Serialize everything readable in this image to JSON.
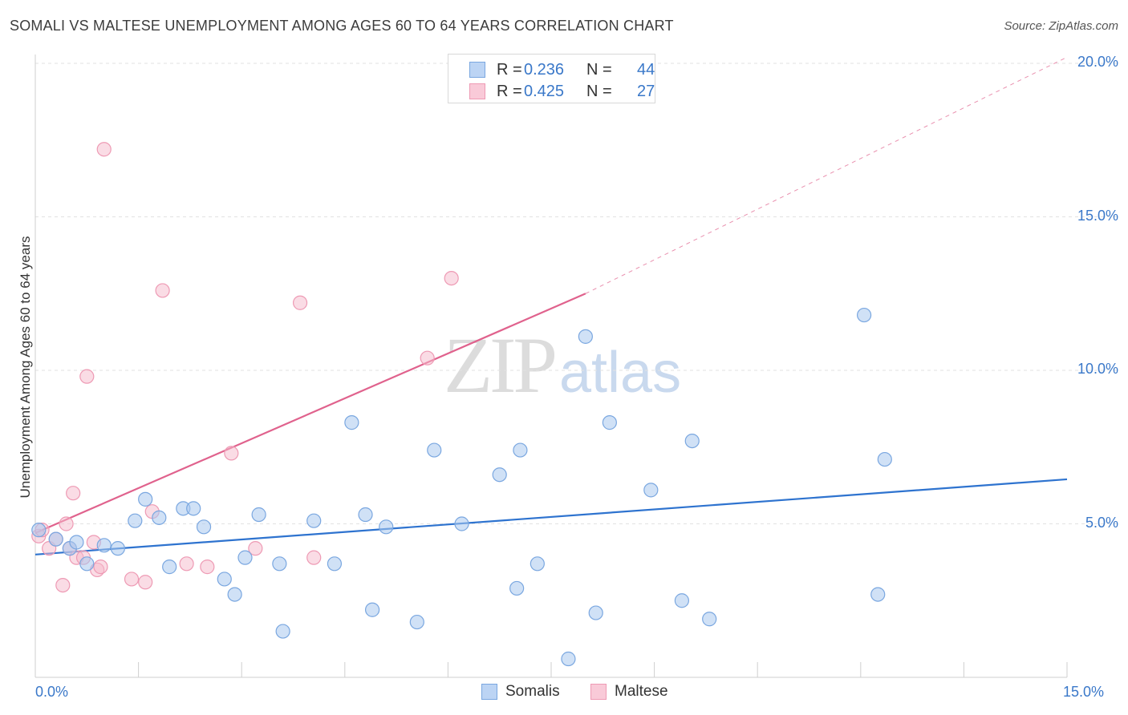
{
  "header": {
    "title": "SOMALI VS MALTESE UNEMPLOYMENT AMONG AGES 60 TO 64 YEARS CORRELATION CHART",
    "source": "Source: ZipAtlas.com"
  },
  "watermark": {
    "zip": "ZIP",
    "atlas": "atlas"
  },
  "legend": {
    "rows": [
      {
        "r_label": "R =",
        "r_value": "0.236",
        "n_label": "N =",
        "n_value": "44"
      },
      {
        "r_label": "R =",
        "r_value": "0.425",
        "n_label": "N =",
        "n_value": "27"
      }
    ]
  },
  "bottom_legend": {
    "somalis": "Somalis",
    "maltese": "Maltese"
  },
  "colors": {
    "somalis_fill": "#a9c8ef",
    "somalis_stroke": "#7aa7e0",
    "somalis_line": "#2e73cf",
    "maltese_fill": "#f6b9cc",
    "maltese_stroke": "#ee9ab4",
    "maltese_line": "#e0628d",
    "tick_text": "#3a78c9",
    "grid": "#e2e2e2"
  },
  "chart_data": {
    "type": "scatter",
    "title": "SOMALI VS MALTESE UNEMPLOYMENT AMONG AGES 60 TO 64 YEARS CORRELATION CHART",
    "xlabel": "",
    "ylabel": "Unemployment Among Ages 60 to 64 years",
    "xlim": [
      0,
      15
    ],
    "ylim": [
      0,
      20
    ],
    "x_tick_labels": [
      "0.0%",
      "15.0%"
    ],
    "y_ticks": [
      5,
      10,
      15,
      20
    ],
    "y_tick_labels": [
      "5.0%",
      "10.0%",
      "15.0%",
      "20.0%"
    ],
    "grid": true,
    "legend_placement": "top-center",
    "series": [
      {
        "name": "Somalis",
        "R": 0.236,
        "N": 44,
        "points": [
          [
            0.05,
            4.8
          ],
          [
            0.3,
            4.5
          ],
          [
            0.5,
            4.2
          ],
          [
            0.6,
            4.4
          ],
          [
            0.75,
            3.7
          ],
          [
            1.0,
            4.3
          ],
          [
            1.2,
            4.2
          ],
          [
            1.45,
            5.1
          ],
          [
            1.6,
            5.8
          ],
          [
            1.8,
            5.2
          ],
          [
            1.95,
            3.6
          ],
          [
            2.15,
            5.5
          ],
          [
            2.3,
            5.5
          ],
          [
            2.45,
            4.9
          ],
          [
            2.75,
            3.2
          ],
          [
            2.9,
            2.7
          ],
          [
            3.05,
            3.9
          ],
          [
            3.25,
            5.3
          ],
          [
            3.55,
            3.7
          ],
          [
            3.6,
            1.5
          ],
          [
            4.05,
            5.1
          ],
          [
            4.35,
            3.7
          ],
          [
            4.6,
            8.3
          ],
          [
            4.8,
            5.3
          ],
          [
            4.9,
            2.2
          ],
          [
            5.1,
            4.9
          ],
          [
            5.55,
            1.8
          ],
          [
            5.8,
            7.4
          ],
          [
            6.2,
            5.0
          ],
          [
            6.75,
            6.6
          ],
          [
            7.0,
            2.9
          ],
          [
            7.05,
            7.4
          ],
          [
            7.3,
            3.7
          ],
          [
            7.75,
            0.6
          ],
          [
            8.0,
            11.1
          ],
          [
            8.15,
            2.1
          ],
          [
            8.35,
            8.3
          ],
          [
            8.95,
            6.1
          ],
          [
            9.4,
            2.5
          ],
          [
            9.55,
            7.7
          ],
          [
            9.8,
            1.9
          ],
          [
            12.05,
            11.8
          ],
          [
            12.25,
            2.7
          ],
          [
            12.35,
            7.1
          ]
        ],
        "trend": {
          "x": [
            0,
            15
          ],
          "y": [
            4.0,
            6.45
          ]
        }
      },
      {
        "name": "Maltese",
        "R": 0.425,
        "N": 27,
        "points": [
          [
            0.05,
            4.6
          ],
          [
            0.1,
            4.8
          ],
          [
            0.2,
            4.2
          ],
          [
            0.3,
            4.5
          ],
          [
            0.4,
            3.0
          ],
          [
            0.45,
            5.0
          ],
          [
            0.5,
            4.2
          ],
          [
            0.55,
            6.0
          ],
          [
            0.6,
            3.9
          ],
          [
            0.7,
            3.9
          ],
          [
            0.75,
            9.8
          ],
          [
            0.85,
            4.4
          ],
          [
            0.9,
            3.5
          ],
          [
            0.95,
            3.6
          ],
          [
            1.0,
            17.2
          ],
          [
            1.4,
            3.2
          ],
          [
            1.6,
            3.1
          ],
          [
            1.7,
            5.4
          ],
          [
            1.85,
            12.6
          ],
          [
            2.2,
            3.7
          ],
          [
            2.5,
            3.6
          ],
          [
            2.85,
            7.3
          ],
          [
            3.2,
            4.2
          ],
          [
            3.85,
            12.2
          ],
          [
            4.05,
            3.9
          ],
          [
            5.7,
            10.4
          ],
          [
            6.05,
            13.0
          ]
        ],
        "trend": {
          "x": [
            0,
            8.0
          ],
          "y": [
            4.7,
            12.5
          ]
        },
        "trend_extension": {
          "x": [
            8.0,
            15
          ],
          "y": [
            12.5,
            20.2
          ]
        }
      }
    ]
  }
}
